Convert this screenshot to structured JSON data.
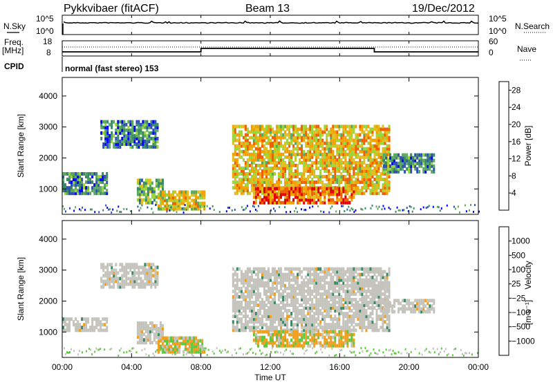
{
  "header": {
    "radar": "Pykkvibaer (fitACF)",
    "beam": "Beam 13",
    "date": "19/Dec/2012"
  },
  "params": {
    "nsky_label": "N.Sky",
    "nsearch_label": "N.Search",
    "nsky_ticks": [
      "10^5",
      "10^0"
    ],
    "nsearch_ticks": [
      "10^5",
      "10^0"
    ],
    "freq_label": "Freq.",
    "freq_unit": "[MHz]",
    "freq_ticks": [
      "18",
      "8"
    ],
    "nave_label": "Nave",
    "nave_ticks": [
      "60",
      "0"
    ],
    "cpid_label": "CPID",
    "cpid_text": "normal (fast stereo) 153"
  },
  "colors": {
    "power": [
      "#0000ff",
      "#2f4fb4",
      "#3b8a66",
      "#5aa860",
      "#9ad63a",
      "#e0c020",
      "#f5a000",
      "#f06000",
      "#e00000"
    ],
    "velocity": [
      "#0000e0",
      "#2a5aa8",
      "#3b8a66",
      "#60c840",
      "#c0c0b8",
      "#f0a020",
      "#f07000",
      "#f03a00",
      "#e00000"
    ],
    "echo_gray": "#c4c4bc",
    "line": "#000000"
  },
  "chart_data": [
    {
      "type": "line",
      "name": "params",
      "x_range": [
        "00:00",
        "24:00"
      ],
      "nsky_scale": "log",
      "nsky_range": [
        "10^0",
        "10^5"
      ],
      "freq_range_mhz": [
        8,
        18
      ],
      "freq_steps": [
        {
          "start": "00:00",
          "end": "08:00",
          "mhz": 10.5
        },
        {
          "start": "08:00",
          "end": "18:00",
          "mhz": 13
        },
        {
          "start": "18:00",
          "end": "24:00",
          "mhz": 10.5
        }
      ],
      "nave_range": [
        0,
        60
      ]
    },
    {
      "type": "heatmap",
      "title": "Power",
      "xlabel": "Time UT",
      "ylabel": "Slant Range [km]",
      "x_ticks": [
        "00:00",
        "04:00",
        "08:00",
        "12:00",
        "16:00",
        "20:00",
        "00:00"
      ],
      "y_ticks": [
        "1000",
        "2000",
        "3000",
        "4000"
      ],
      "y_range_km": [
        180,
        4600
      ],
      "colorbar": {
        "label": "Power [dB]",
        "ticks": [
          "4",
          "8",
          "12",
          "16",
          "20",
          "24",
          "28"
        ],
        "range": [
          0,
          30
        ]
      },
      "echo_regions": [
        {
          "start_h": 0.0,
          "end_h": 2.6,
          "rmin_km": 800,
          "rmax_km": 1500,
          "db": 8
        },
        {
          "start_h": 2.2,
          "end_h": 5.5,
          "rmin_km": 2300,
          "rmax_km": 3200,
          "db": 7
        },
        {
          "start_h": 4.3,
          "end_h": 5.8,
          "rmin_km": 500,
          "rmax_km": 1300,
          "db": 12
        },
        {
          "start_h": 5.5,
          "end_h": 8.2,
          "rmin_km": 300,
          "rmax_km": 900,
          "db": 18
        },
        {
          "start_h": 9.8,
          "end_h": 18.8,
          "rmin_km": 800,
          "rmax_km": 3000,
          "db": 20
        },
        {
          "start_h": 11.0,
          "end_h": 16.8,
          "rmin_km": 500,
          "rmax_km": 1000,
          "db": 26
        },
        {
          "start_h": 18.5,
          "end_h": 21.5,
          "rmin_km": 1500,
          "rmax_km": 2100,
          "db": 8
        }
      ]
    },
    {
      "type": "heatmap",
      "title": "Velocity",
      "xlabel": "Time UT",
      "ylabel": "Slant Range [km]",
      "x_ticks": [
        "00:00",
        "04:00",
        "08:00",
        "12:00",
        "16:00",
        "20:00",
        "00:00"
      ],
      "y_ticks": [
        "1000",
        "2000",
        "3000",
        "4000"
      ],
      "y_range_km": [
        180,
        4600
      ],
      "colorbar": {
        "label": "Velocity",
        "unit": "[m s⁻¹]",
        "ticks": [
          "1000",
          "500",
          "100",
          "25",
          "−25",
          "−100",
          "−500",
          "−1000"
        ]
      },
      "echo_regions": [
        {
          "start_h": 0.0,
          "end_h": 2.6,
          "rmin_km": 1000,
          "rmax_km": 1400,
          "vel": 0
        },
        {
          "start_h": 2.2,
          "end_h": 5.5,
          "rmin_km": 2400,
          "rmax_km": 3200,
          "vel": 0
        },
        {
          "start_h": 4.3,
          "end_h": 5.8,
          "rmin_km": 600,
          "rmax_km": 1300,
          "vel": 0
        },
        {
          "start_h": 5.5,
          "end_h": 8.2,
          "rmin_km": 300,
          "rmax_km": 800,
          "vel": -100
        },
        {
          "start_h": 9.8,
          "end_h": 18.8,
          "rmin_km": 1000,
          "rmax_km": 3000,
          "vel": 0
        },
        {
          "start_h": 11.0,
          "end_h": 16.8,
          "rmin_km": 500,
          "rmax_km": 1000,
          "vel": -100
        },
        {
          "start_h": 18.5,
          "end_h": 21.5,
          "rmin_km": 1600,
          "rmax_km": 2000,
          "vel": 0
        }
      ]
    }
  ]
}
